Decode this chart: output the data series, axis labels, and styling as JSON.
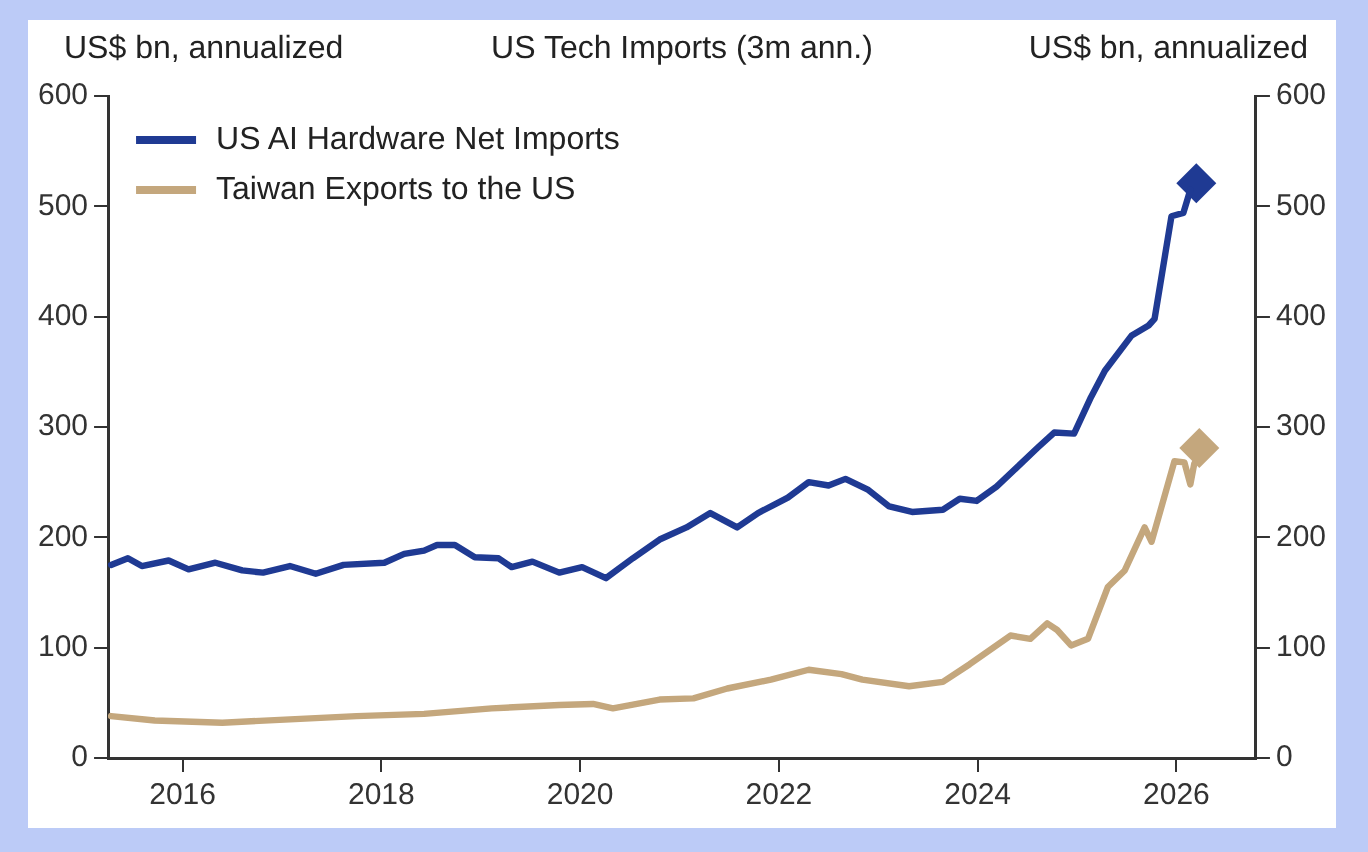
{
  "chart_data": {
    "type": "line",
    "title": "US Tech Imports (3m ann.)",
    "ylabel": "US$ bn, annualized",
    "y2label": "US$ bn, annualized",
    "xlim": [
      2015.25,
      2026.8
    ],
    "xticks": [
      2016,
      2018,
      2020,
      2022,
      2024,
      2026
    ],
    "ylim": [
      0,
      600
    ],
    "yticks": [
      0,
      100,
      200,
      300,
      400,
      500,
      600
    ],
    "y2lim": [
      0,
      600
    ],
    "y2ticks": [
      0,
      100,
      200,
      300,
      400,
      500,
      600
    ],
    "grid": false,
    "legend": "top left",
    "marker": "none",
    "line_style": "solid",
    "series": [
      {
        "name": "US AI Hardware Net Imports",
        "color": "#1f3a93",
        "x": [
          2015.28,
          2015.45,
          2015.59,
          2015.86,
          2016.06,
          2016.33,
          2016.6,
          2016.81,
          2017.08,
          2017.34,
          2017.62,
          2018.03,
          2018.23,
          2018.43,
          2018.56,
          2018.74,
          2018.94,
          2019.18,
          2019.31,
          2019.52,
          2019.79,
          2020.02,
          2020.26,
          2020.53,
          2020.8,
          2021.07,
          2021.31,
          2021.58,
          2021.79,
          2022.09,
          2022.3,
          2022.5,
          2022.67,
          2022.9,
          2023.11,
          2023.34,
          2023.65,
          2023.82,
          2023.99,
          2024.19,
          2024.39,
          2024.6,
          2024.77,
          2024.97,
          2025.14,
          2025.28,
          2025.55,
          2025.72,
          2025.78,
          2025.95,
          2026.07,
          2026.14
        ],
        "values": [
          175,
          181,
          174,
          179,
          171,
          177,
          170,
          168,
          174,
          167,
          175,
          177,
          185,
          188,
          193,
          193,
          182,
          181,
          173,
          178,
          168,
          173,
          163,
          181,
          198,
          209,
          222,
          209,
          222,
          236,
          250,
          247,
          253,
          243,
          228,
          223,
          225,
          235,
          233,
          246,
          263,
          281,
          295,
          294,
          327,
          351,
          383,
          392,
          398,
          491,
          494,
          515
        ]
      },
      {
        "name": "Taiwan Exports to the US",
        "color": "#c4a77d",
        "x": [
          2015.28,
          2015.72,
          2016.4,
          2017.08,
          2017.75,
          2018.43,
          2019.11,
          2019.79,
          2020.13,
          2020.33,
          2020.8,
          2021.14,
          2021.48,
          2021.92,
          2022.3,
          2022.63,
          2022.84,
          2023.31,
          2023.65,
          2023.92,
          2024.33,
          2024.53,
          2024.7,
          2024.8,
          2024.94,
          2025.11,
          2025.31,
          2025.48,
          2025.68,
          2025.75,
          2025.98,
          2026.08,
          2026.14,
          2026.18
        ],
        "values": [
          38,
          34,
          32,
          35,
          38,
          40,
          45,
          48,
          49,
          45,
          53,
          54,
          63,
          71,
          80,
          76,
          71,
          65,
          69,
          85,
          111,
          108,
          122,
          116,
          102,
          108,
          155,
          170,
          209,
          196,
          269,
          268,
          248,
          267
        ]
      },
      {
        "type": "scatter",
        "marker": "diamond",
        "color": "#1f3a93",
        "x": [
          2026.2
        ],
        "values": [
          521
        ]
      },
      {
        "type": "scatter",
        "marker": "diamond",
        "color": "#c4a77d",
        "x": [
          2026.23
        ],
        "values": [
          281
        ]
      }
    ]
  }
}
